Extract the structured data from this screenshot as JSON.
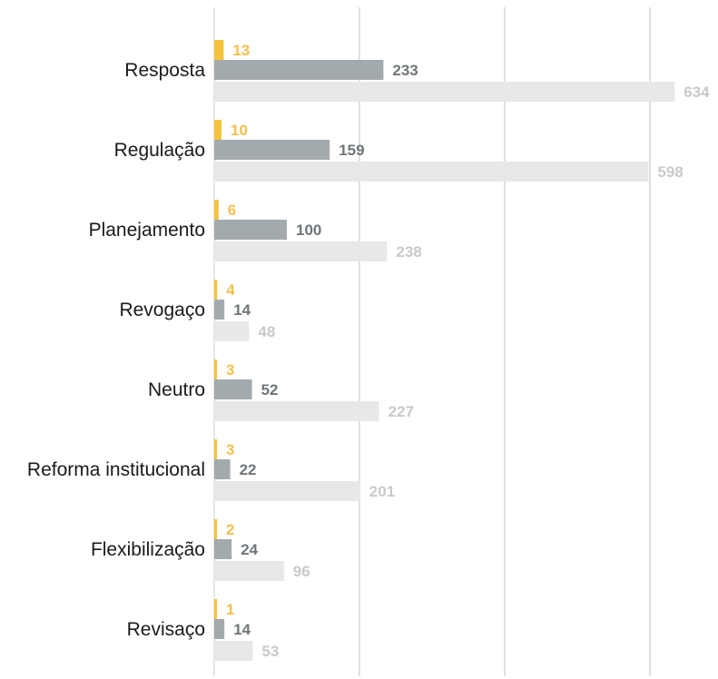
{
  "chart_data": {
    "type": "bar",
    "orientation": "horizontal",
    "categories": [
      "Resposta",
      "Regulação",
      "Planejamento",
      "Revogaço",
      "Neutro",
      "Reforma institucional",
      "Flexibilização",
      "Revisaço"
    ],
    "series": [
      {
        "color": "#f5c33b",
        "label_color": "#f2c14e",
        "values": [
          13,
          10,
          6,
          4,
          3,
          3,
          2,
          1
        ]
      },
      {
        "color": "#a3aaad",
        "label_color": "#6f7679",
        "values": [
          233,
          159,
          100,
          14,
          52,
          22,
          24,
          14
        ]
      },
      {
        "color": "#e8e8e8",
        "label_color": "#c9c9c9",
        "values": [
          634,
          598,
          238,
          48,
          227,
          201,
          96,
          53
        ]
      }
    ],
    "xlim": [
      0,
      700
    ],
    "grid": true,
    "legend": "none",
    "colors": {
      "gridline": "#e0e0e0",
      "axis": "#cfcfcf",
      "category_text": "#1a1a1a"
    }
  }
}
